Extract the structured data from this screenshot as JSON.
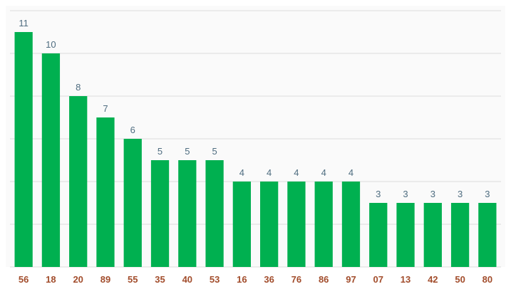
{
  "chart_data": {
    "type": "bar",
    "title": "",
    "xlabel": "",
    "ylabel": "",
    "categories": [
      "56",
      "18",
      "20",
      "89",
      "55",
      "35",
      "40",
      "53",
      "16",
      "36",
      "76",
      "86",
      "97",
      "07",
      "13",
      "42",
      "50",
      "80"
    ],
    "values": [
      11,
      10,
      8,
      7,
      6,
      5,
      5,
      5,
      4,
      4,
      4,
      4,
      4,
      3,
      3,
      3,
      3,
      3
    ],
    "ylim": [
      0,
      12
    ],
    "grid": true,
    "grid_step": 2,
    "data_labels": true,
    "colors": {
      "bar": "#00b050",
      "data_label": "#4f6d80",
      "tick_label": "#a24d2c",
      "plot_background": "#fafafa",
      "grid": "#dcdcdc"
    }
  }
}
